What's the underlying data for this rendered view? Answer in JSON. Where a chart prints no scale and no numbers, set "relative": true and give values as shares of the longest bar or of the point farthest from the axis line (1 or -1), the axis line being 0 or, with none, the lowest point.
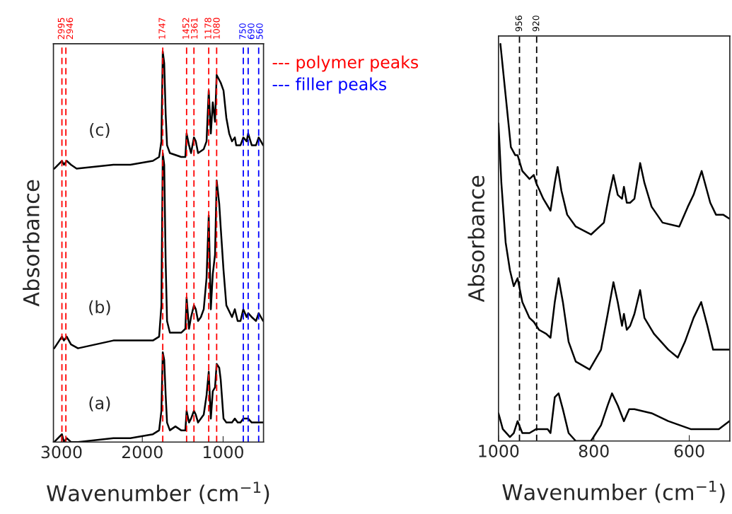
{
  "chart_data": [
    {
      "type": "line",
      "relative": true,
      "xlabel": "Wavenumber (cm$^{−1}$)",
      "ylabel": "Absorbance",
      "xlim": [
        3100,
        500
      ],
      "xticks": [
        3000,
        2000,
        1000
      ],
      "tick_labels": "x",
      "grid": false,
      "legend": false,
      "line_style": "solid",
      "marker": "none",
      "series": [
        {
          "name": "(a)",
          "color": "#000000",
          "x": [
            3090,
            2995,
            2970,
            2936,
            2883,
            2796,
            2358,
            2148,
            1869,
            1792,
            1764,
            1747,
            1729,
            1711,
            1694,
            1659,
            1590,
            1519,
            1467,
            1452,
            1422,
            1397,
            1361,
            1338,
            1310,
            1275,
            1240,
            1205,
            1178,
            1152,
            1128,
            1100,
            1080,
            1048,
            1030,
            995,
            960,
            890,
            855,
            820,
            785,
            750,
            709,
            690,
            646,
            593,
            560,
            505
          ],
          "values": [
            0.0,
            0.02,
            0.0,
            0.01,
            0.0,
            0.0,
            0.01,
            0.01,
            0.02,
            0.03,
            0.08,
            0.23,
            0.21,
            0.12,
            0.05,
            0.03,
            0.04,
            0.03,
            0.03,
            0.08,
            0.05,
            0.06,
            0.08,
            0.07,
            0.05,
            0.06,
            0.07,
            0.12,
            0.18,
            0.06,
            0.13,
            0.14,
            0.2,
            0.19,
            0.16,
            0.06,
            0.05,
            0.05,
            0.06,
            0.05,
            0.05,
            0.06,
            0.06,
            0.06,
            0.05,
            0.05,
            0.05,
            0.05
          ]
        },
        {
          "name": "(b)",
          "color": "#000000",
          "x": [
            3090,
            2995,
            2970,
            2936,
            2883,
            2796,
            2358,
            2148,
            1869,
            1792,
            1764,
            1747,
            1729,
            1711,
            1694,
            1659,
            1519,
            1467,
            1452,
            1422,
            1397,
            1361,
            1338,
            1310,
            1275,
            1240,
            1205,
            1178,
            1152,
            1128,
            1100,
            1080,
            1048,
            1030,
            995,
            960,
            890,
            855,
            820,
            785,
            750,
            709,
            690,
            646,
            593,
            560,
            505
          ],
          "values": [
            0.24,
            0.27,
            0.26,
            0.27,
            0.25,
            0.24,
            0.26,
            0.26,
            0.26,
            0.27,
            0.35,
            0.74,
            0.71,
            0.46,
            0.31,
            0.28,
            0.28,
            0.29,
            0.37,
            0.29,
            0.32,
            0.35,
            0.34,
            0.31,
            0.32,
            0.34,
            0.42,
            0.58,
            0.34,
            0.43,
            0.48,
            0.67,
            0.61,
            0.55,
            0.44,
            0.35,
            0.32,
            0.34,
            0.31,
            0.31,
            0.34,
            0.32,
            0.33,
            0.32,
            0.31,
            0.33,
            0.31
          ]
        },
        {
          "name": "(c)",
          "color": "#000000",
          "x": [
            3090,
            2995,
            2970,
            2936,
            2883,
            2813,
            2358,
            2148,
            1869,
            1792,
            1764,
            1747,
            1729,
            1711,
            1694,
            1659,
            1519,
            1467,
            1452,
            1422,
            1397,
            1361,
            1338,
            1310,
            1240,
            1205,
            1178,
            1152,
            1128,
            1100,
            1080,
            1030,
            995,
            960,
            925,
            890,
            855,
            838,
            785,
            750,
            709,
            690,
            646,
            593,
            560,
            505
          ],
          "values": [
            0.7,
            0.72,
            0.71,
            0.72,
            0.71,
            0.7,
            0.71,
            0.71,
            0.72,
            0.73,
            0.77,
            1.0,
            0.97,
            0.84,
            0.76,
            0.74,
            0.73,
            0.73,
            0.79,
            0.76,
            0.74,
            0.78,
            0.77,
            0.74,
            0.75,
            0.77,
            0.9,
            0.79,
            0.87,
            0.82,
            0.94,
            0.92,
            0.9,
            0.83,
            0.79,
            0.77,
            0.78,
            0.76,
            0.76,
            0.78,
            0.77,
            0.79,
            0.76,
            0.76,
            0.78,
            0.76
          ]
        }
      ],
      "ref_lines": [
        {
          "axis": "x",
          "value": 2995,
          "label": "2995",
          "color": "#ff0000",
          "line_style": "dashed"
        },
        {
          "axis": "x",
          "value": 2946,
          "label": "2946",
          "color": "#ff0000",
          "line_style": "dashed"
        },
        {
          "axis": "x",
          "value": 1747,
          "label": "1747",
          "color": "#ff0000",
          "line_style": "dashed"
        },
        {
          "axis": "x",
          "value": 1452,
          "label": "1452",
          "color": "#ff0000",
          "line_style": "dashed"
        },
        {
          "axis": "x",
          "value": 1361,
          "label": "1361",
          "color": "#ff0000",
          "line_style": "dashed"
        },
        {
          "axis": "x",
          "value": 1178,
          "label": "1178",
          "color": "#ff0000",
          "line_style": "dashed"
        },
        {
          "axis": "x",
          "value": 1080,
          "label": "1080",
          "color": "#ff0000",
          "line_style": "dashed"
        },
        {
          "axis": "x",
          "value": 750,
          "label": "750",
          "color": "#0000ff",
          "line_style": "dashed"
        },
        {
          "axis": "x",
          "value": 690,
          "label": "690",
          "color": "#0000ff",
          "line_style": "dashed"
        },
        {
          "axis": "x",
          "value": 560,
          "label": "560",
          "color": "#0000ff",
          "line_style": "dashed"
        }
      ],
      "annotations": [
        "--- polymer peaks",
        "--- filler peaks"
      ]
    },
    {
      "type": "line",
      "relative": true,
      "xlabel": "Wavenumber (cm$^{−1}$)",
      "ylabel": "Absorbance",
      "xlim": [
        1000,
        515
      ],
      "xticks": [
        1000,
        800,
        600
      ],
      "tick_labels": "x",
      "grid": false,
      "legend": false,
      "line_style": "solid",
      "marker": "none",
      "series": [
        {
          "color": "#000000",
          "x": [
            1000,
            991,
            976,
            968,
            960,
            950,
            935,
            921,
            897,
            891,
            882,
            874,
            865,
            853,
            838,
            806,
            785,
            771,
            762,
            750,
            737,
            726,
            715,
            679,
            644,
            597,
            562,
            538,
            516
          ],
          "values": [
            0.07,
            0.03,
            0.01,
            0.02,
            0.05,
            0.02,
            0.02,
            0.03,
            0.03,
            0.02,
            0.11,
            0.12,
            0.08,
            0.02,
            0.0,
            0.0,
            0.04,
            0.09,
            0.12,
            0.09,
            0.05,
            0.08,
            0.08,
            0.07,
            0.05,
            0.03,
            0.03,
            0.03,
            0.05
          ]
        },
        {
          "color": "#000000",
          "x": [
            1000,
            994,
            985,
            976,
            968,
            960,
            950,
            935,
            926,
            915,
            900,
            891,
            882,
            874,
            865,
            853,
            838,
            809,
            785,
            771,
            759,
            750,
            741,
            737,
            731,
            724,
            715,
            703,
            694,
            674,
            644,
            624,
            609,
            591,
            575,
            562,
            550,
            516
          ],
          "values": [
            0.8,
            0.65,
            0.5,
            0.43,
            0.39,
            0.41,
            0.35,
            0.31,
            0.3,
            0.28,
            0.27,
            0.26,
            0.35,
            0.41,
            0.35,
            0.25,
            0.2,
            0.18,
            0.23,
            0.32,
            0.4,
            0.35,
            0.29,
            0.32,
            0.28,
            0.29,
            0.32,
            0.38,
            0.31,
            0.27,
            0.23,
            0.21,
            0.25,
            0.31,
            0.35,
            0.29,
            0.23,
            0.23
          ]
        },
        {
          "color": "#000000",
          "x": [
            996,
            985,
            974,
            965,
            960,
            950,
            935,
            926,
            921,
            906,
            891,
            882,
            876,
            868,
            856,
            838,
            806,
            779,
            768,
            759,
            750,
            741,
            737,
            731,
            724,
            715,
            703,
            694,
            679,
            656,
            621,
            603,
            591,
            574,
            556,
            544,
            529,
            516
          ],
          "values": [
            1.0,
            0.87,
            0.74,
            0.72,
            0.72,
            0.68,
            0.66,
            0.67,
            0.65,
            0.61,
            0.58,
            0.65,
            0.69,
            0.63,
            0.57,
            0.54,
            0.52,
            0.55,
            0.62,
            0.67,
            0.62,
            0.61,
            0.64,
            0.6,
            0.6,
            0.61,
            0.7,
            0.65,
            0.59,
            0.55,
            0.54,
            0.59,
            0.62,
            0.68,
            0.6,
            0.57,
            0.57,
            0.56
          ]
        }
      ],
      "ref_lines": [
        {
          "axis": "x",
          "value": 956,
          "label": "956",
          "color": "#000000",
          "line_style": "dashed"
        },
        {
          "axis": "x",
          "value": 920,
          "label": "920",
          "color": "#000000",
          "line_style": "dashed"
        }
      ]
    }
  ]
}
